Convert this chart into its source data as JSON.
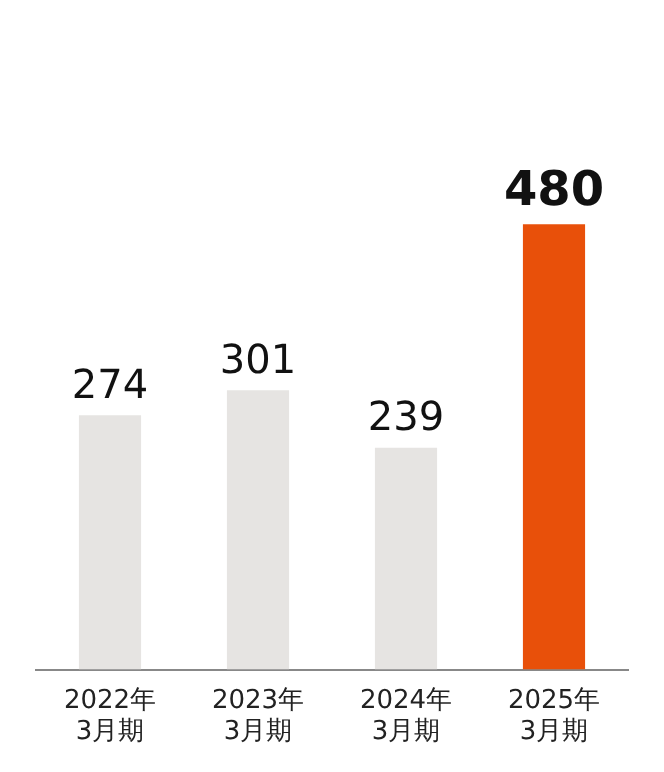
{
  "chart_data": {
    "type": "bar",
    "categories": [
      "2022年\n3月期",
      "2023年\n3月期",
      "2024年\n3月期",
      "2025年\n3月期"
    ],
    "values": [
      274,
      301,
      239,
      480
    ],
    "colors": [
      "#e6e4e2",
      "#e6e4e2",
      "#e6e4e2",
      "#e8500a"
    ],
    "data_labels": true,
    "grid": false,
    "legend": false
  }
}
